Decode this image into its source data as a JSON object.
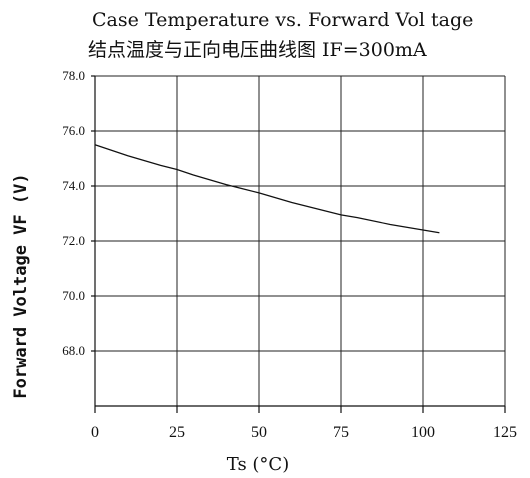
{
  "chart_data": {
    "type": "line",
    "title_line1": "Case Temperature vs. Forward Vol tage",
    "title_line2": "结点温度与正向电压曲线图  IF=300mA",
    "xlabel": "Ts  (°C)",
    "ylabel": "Forward Voltage VF (V)",
    "xlim": [
      0,
      125
    ],
    "ylim": [
      66.0,
      78.0
    ],
    "xticks": [
      "0",
      "25",
      "50",
      "75",
      "100",
      "125"
    ],
    "yticks": [
      "68.0",
      "70.0",
      "72.0",
      "74.0",
      "76.0",
      "78.0"
    ],
    "grid": true,
    "series": [
      {
        "x": [
          0,
          10,
          20,
          25,
          30,
          40,
          45,
          50,
          60,
          70,
          75,
          80,
          90,
          100,
          105
        ],
        "y": [
          75.5,
          75.1,
          74.75,
          74.6,
          74.4,
          74.05,
          73.9,
          73.75,
          73.4,
          73.1,
          72.95,
          72.85,
          72.6,
          72.4,
          72.3
        ]
      }
    ]
  }
}
